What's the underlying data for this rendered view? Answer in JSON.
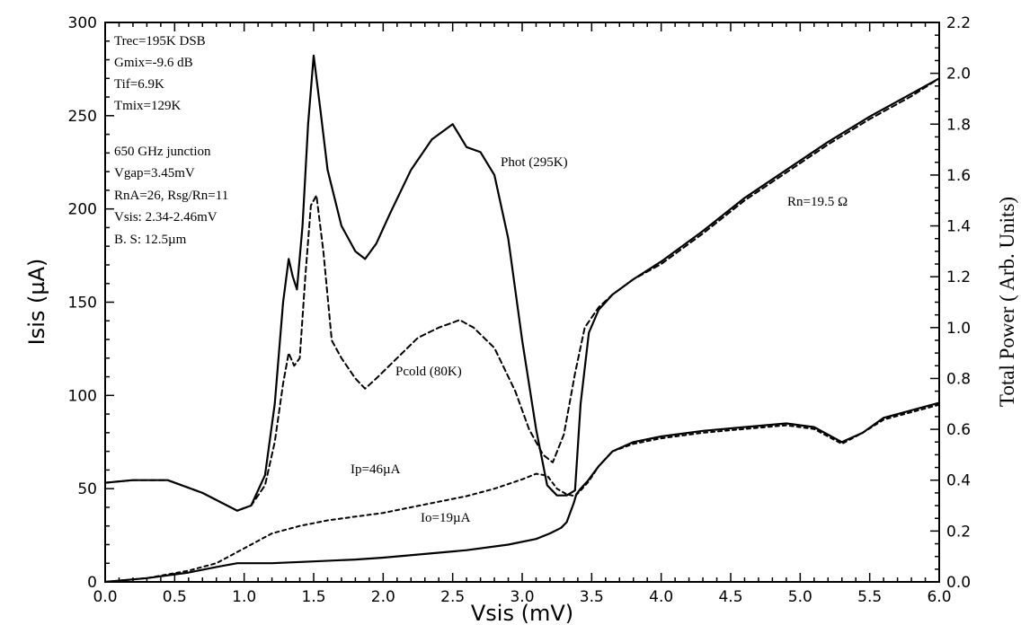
{
  "chart_data": {
    "type": "line",
    "xlabel": "Vsis (mV)",
    "ylabel_left": "Isis (µA)",
    "ylabel_right": "Total Power ( Arb. Units)",
    "xlim": [
      0.0,
      6.0
    ],
    "ylim_left": [
      0,
      300
    ],
    "ylim_right": [
      0.0,
      2.2
    ],
    "x_ticks": [
      "0.0",
      "0.5",
      "1.0",
      "1.5",
      "2.0",
      "2.5",
      "3.0",
      "3.5",
      "4.0",
      "4.5",
      "5.0",
      "5.5",
      "6.0"
    ],
    "y_left_ticks": [
      "0",
      "50",
      "100",
      "150",
      "200",
      "250",
      "300"
    ],
    "y_right_ticks": [
      "0.0",
      "0.2",
      "0.4",
      "0.6",
      "0.8",
      "1.0",
      "1.2",
      "1.4",
      "1.6",
      "1.8",
      "2.0",
      "2.2"
    ],
    "grid": false,
    "info_lines": [
      "Trec=195K DSB",
      "Gmix=-9.6 dB",
      "Tif=6.9K",
      "Tmix=129K",
      "650 GHz junction",
      "Vgap=3.45mV",
      "RnA=26, Rsg/Rn=11",
      "Vsis: 2.34-2.46mV",
      "B. S: 12.5µm"
    ],
    "labels": {
      "phot": "Phot (295K)",
      "pcold": "Pcold (80K)",
      "ip": "Ip=46µA",
      "io": "Io=19µA",
      "rn": "Rn=19.5 Ω"
    },
    "series": [
      {
        "name": "Phot (295K)",
        "axis": "right",
        "style": "solid",
        "x": [
          0.0,
          0.2,
          0.45,
          0.7,
          0.95,
          1.05,
          1.15,
          1.22,
          1.28,
          1.32,
          1.35,
          1.38,
          1.42,
          1.46,
          1.5,
          1.55,
          1.6,
          1.7,
          1.8,
          1.87,
          1.95,
          2.05,
          2.2,
          2.35,
          2.5,
          2.6,
          2.7,
          2.8,
          2.9,
          3.0,
          3.1,
          3.18,
          3.25,
          3.32,
          3.38,
          3.42,
          3.48,
          3.55,
          3.65,
          3.8,
          4.0,
          4.3,
          4.6,
          4.9,
          5.2,
          5.5,
          5.8,
          6.0
        ],
        "values": [
          0.39,
          0.4,
          0.4,
          0.35,
          0.28,
          0.3,
          0.42,
          0.7,
          1.1,
          1.27,
          1.2,
          1.15,
          1.4,
          1.8,
          2.07,
          1.85,
          1.62,
          1.4,
          1.3,
          1.27,
          1.33,
          1.45,
          1.62,
          1.74,
          1.8,
          1.71,
          1.69,
          1.6,
          1.35,
          0.95,
          0.6,
          0.38,
          0.34,
          0.34,
          0.36,
          0.7,
          0.98,
          1.07,
          1.13,
          1.19,
          1.26,
          1.38,
          1.51,
          1.62,
          1.73,
          1.83,
          1.92,
          1.98
        ]
      },
      {
        "name": "Pcold (80K)",
        "axis": "right",
        "style": "dashed",
        "x": [
          0.0,
          0.2,
          0.45,
          0.7,
          0.95,
          1.05,
          1.15,
          1.22,
          1.28,
          1.32,
          1.36,
          1.4,
          1.44,
          1.48,
          1.52,
          1.57,
          1.63,
          1.7,
          1.8,
          1.87,
          1.95,
          2.1,
          2.25,
          2.4,
          2.5,
          2.55,
          2.65,
          2.8,
          2.95,
          3.05,
          3.15,
          3.22,
          3.3,
          3.38,
          3.45,
          3.55,
          3.65,
          3.8,
          4.0,
          4.3,
          4.6,
          4.9,
          5.2,
          5.5,
          5.8,
          6.0
        ],
        "values": [
          0.39,
          0.4,
          0.4,
          0.35,
          0.28,
          0.3,
          0.38,
          0.55,
          0.78,
          0.9,
          0.85,
          0.88,
          1.2,
          1.48,
          1.52,
          1.3,
          0.95,
          0.88,
          0.8,
          0.76,
          0.8,
          0.88,
          0.96,
          1.0,
          1.02,
          1.03,
          1.0,
          0.92,
          0.75,
          0.6,
          0.5,
          0.47,
          0.58,
          0.82,
          1.0,
          1.08,
          1.13,
          1.19,
          1.25,
          1.37,
          1.5,
          1.61,
          1.72,
          1.82,
          1.91,
          1.98
        ]
      },
      {
        "name": "Ip=46µA",
        "axis": "left",
        "style": "dashed",
        "x": [
          0.0,
          0.3,
          0.6,
          0.8,
          1.0,
          1.2,
          1.4,
          1.6,
          1.8,
          2.0,
          2.2,
          2.4,
          2.6,
          2.8,
          3.0,
          3.1,
          3.18,
          3.25,
          3.32,
          3.38,
          3.42,
          3.48,
          3.55,
          3.65,
          3.8,
          4.0,
          4.3,
          4.6,
          4.9,
          5.1,
          5.3,
          5.45,
          5.6,
          5.8,
          6.0
        ],
        "values": [
          0,
          2,
          6,
          10,
          18,
          26,
          30,
          33,
          35,
          37,
          40,
          43,
          46,
          50,
          55,
          58,
          57,
          50,
          47,
          46,
          49,
          54,
          62,
          70,
          74,
          77,
          80,
          82,
          84,
          82,
          74,
          80,
          87,
          91,
          95
        ]
      },
      {
        "name": "Io=19µA",
        "axis": "left",
        "style": "solid",
        "x": [
          0.0,
          0.3,
          0.6,
          0.8,
          0.95,
          1.0,
          1.2,
          1.5,
          1.8,
          2.0,
          2.3,
          2.6,
          2.9,
          3.1,
          3.2,
          3.28,
          3.32,
          3.35,
          3.37,
          3.39,
          3.42,
          3.47,
          3.55,
          3.65,
          3.8,
          4.0,
          4.3,
          4.6,
          4.9,
          5.1,
          5.3,
          5.45,
          5.6,
          5.8,
          6.0
        ],
        "values": [
          0,
          2,
          5,
          8,
          10,
          10,
          10,
          11,
          12,
          13,
          15,
          17,
          20,
          23,
          26,
          29,
          32,
          38,
          42,
          47,
          50,
          54,
          62,
          70,
          75,
          78,
          81,
          83,
          85,
          83,
          75,
          80,
          88,
          92,
          96
        ]
      }
    ]
  }
}
